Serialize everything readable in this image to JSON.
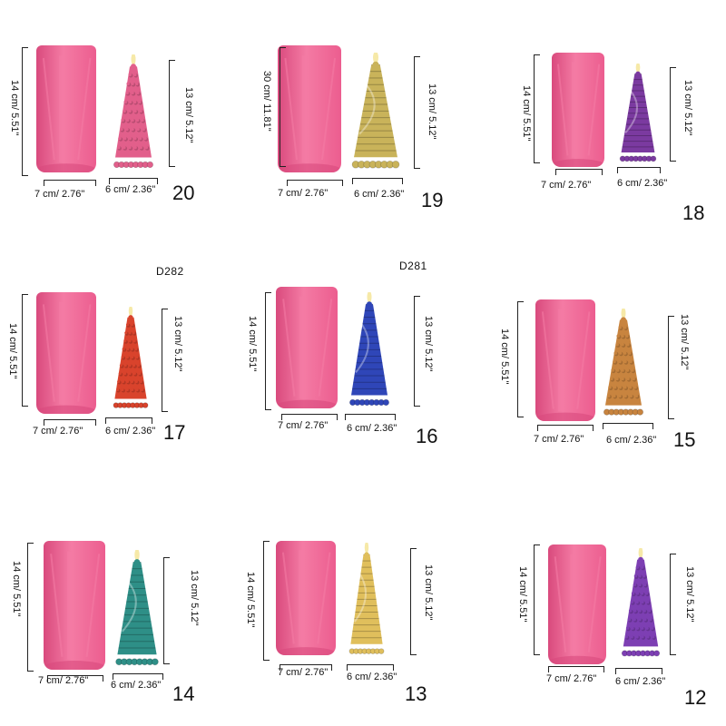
{
  "products": [
    {
      "number": "20",
      "mold_height": "14 cm/ 5.51\"",
      "mold_width": "7 cm/ 2.76\"",
      "candle_height": "13 cm/ 5.12\"",
      "candle_width": "6 cm/ 2.36\"",
      "candle_color": "#e25f8b",
      "candle_style": "beads"
    },
    {
      "number": "19",
      "mold_height": "30 cm/ 11.81\"",
      "mold_width": "7 cm/ 2.76\"",
      "candle_height": "13 cm/ 5.12\"",
      "candle_width": "6 cm/ 2.36\"",
      "candle_color": "#c9b35a",
      "candle_style": "ribbed"
    },
    {
      "number": "18",
      "mold_height": "14 cm/ 5.51\"",
      "mold_width": "7 cm/ 2.76\"",
      "candle_height": "13 cm/ 5.12\"",
      "candle_width": "6 cm/ 2.36\"",
      "candle_color": "#7b3aa0",
      "candle_style": "ribbed"
    },
    {
      "number": "17",
      "mold_height": "14 cm/ 5.51\"",
      "mold_width": "7 cm/ 2.76\"",
      "candle_height": "13 cm/ 5.12\"",
      "candle_width": "6 cm/ 2.36\"",
      "candle_color": "#d9432c",
      "candle_style": "beads"
    },
    {
      "number": "16",
      "mold_height": "14 cm/ 5.51\"",
      "mold_width": "7 cm/ 2.76\"",
      "candle_height": "13 cm/ 5.12\"",
      "candle_width": "6 cm/ 2.36\"",
      "candle_color": "#2f46b8",
      "candle_style": "ribbed"
    },
    {
      "number": "15",
      "mold_height": "14 cm/ 5.51\"",
      "mold_width": "7 cm/ 2.76\"",
      "candle_height": "13 cm/ 5.12\"",
      "candle_width": "6 cm/ 2.36\"",
      "candle_color": "#c8843f",
      "candle_style": "beads"
    },
    {
      "number": "14",
      "mold_height": "14 cm/ 5.51\"",
      "mold_width": "7 cm/ 2.76\"",
      "candle_height": "13 cm/ 5.12\"",
      "candle_width": "6 cm/ 2.36\"",
      "candle_color": "#2e8f87",
      "candle_style": "ribbed"
    },
    {
      "number": "13",
      "mold_height": "14 cm/ 5.51\"",
      "mold_width": "7 cm/ 2.76\"",
      "candle_height": "13 cm/ 5.12\"",
      "candle_width": "6 cm/ 2.36\"",
      "candle_color": "#e0bf5c",
      "candle_style": "ribbed"
    },
    {
      "number": "12",
      "mold_height": "14 cm/ 5.51\"",
      "mold_width": "7 cm/ 2.76\"",
      "candle_height": "13 cm/ 5.12\"",
      "candle_width": "6 cm/ 2.36\"",
      "candle_color": "#7d3fb3",
      "candle_style": "beads"
    }
  ],
  "codes": {
    "first": "D282",
    "second": "D281"
  },
  "colors": {
    "mold": "#ec5d8f",
    "mold_light": "#f47ba4",
    "mold_dark": "#d94a7d",
    "flame": "#f6e9a8"
  }
}
